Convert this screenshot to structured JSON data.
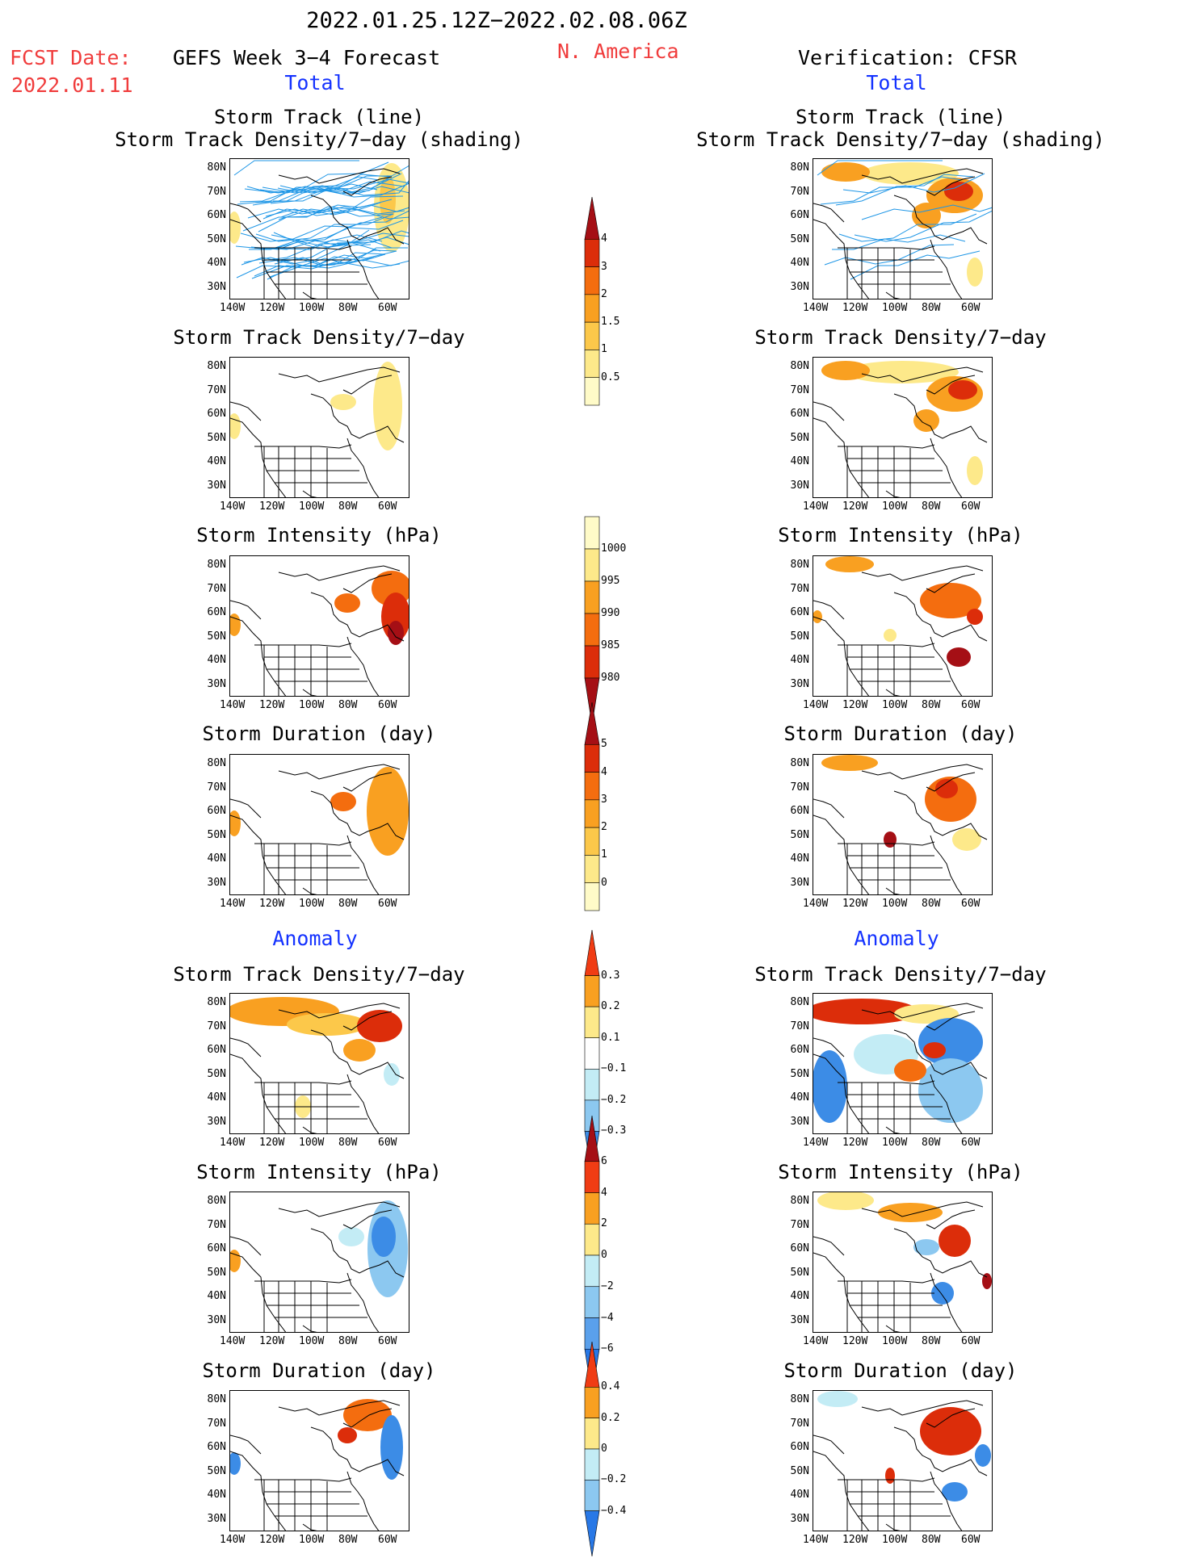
{
  "header": {
    "period": "2022.01.25.12Z−2022.02.08.06Z",
    "fcst_label": "FCST Date:",
    "fcst_date": "2022.01.11",
    "left_title": "GEFS Week 3−4 Forecast",
    "region": "N. America",
    "right_title": "Verification: CFSR",
    "total_left": "Total",
    "total_right": "Total",
    "anomaly_left": "Anomaly",
    "anomaly_right": "Anomaly"
  },
  "axis": {
    "lat_labels": [
      "80N",
      "70N",
      "60N",
      "50N",
      "40N",
      "30N"
    ],
    "lon_labels": [
      "140W",
      "120W",
      "100W",
      "80W",
      "60W"
    ]
  },
  "panels": {
    "track_title_1": "Storm Track (line)",
    "track_title_2": "Storm Track Density/7−day (shading)",
    "density": "Storm Track Density/7−day",
    "intensity": "Storm Intensity (hPa)",
    "duration": "Storm Duration (day)"
  },
  "colorbars": [
    {
      "id": "density-total",
      "labels": [
        "4",
        "3",
        "2",
        "1.5",
        "1",
        "0.5"
      ],
      "colors": [
        "#a50f15",
        "#dc2d0a",
        "#f46d0f",
        "#f9a021",
        "#fcc84a",
        "#fde98a",
        "#fffbc8"
      ]
    },
    {
      "id": "intensity-total",
      "labels": [
        "1000",
        "995",
        "990",
        "985",
        "980"
      ],
      "colors": [
        "#fffbc8",
        "#fde98a",
        "#f9a021",
        "#f46d0f",
        "#dc2d0a",
        "#a50f15"
      ]
    },
    {
      "id": "duration-total",
      "labels": [
        "5",
        "4",
        "3",
        "2",
        "1",
        "0"
      ],
      "colors": [
        "#a50f15",
        "#dc2d0a",
        "#f46d0f",
        "#f9a021",
        "#fcc84a",
        "#fde98a",
        "#fffbc8"
      ]
    },
    {
      "id": "density-anom",
      "labels": [
        "0.3",
        "0.2",
        "0.1",
        "−0.1",
        "−0.2",
        "−0.3"
      ],
      "colors": [
        "#f03c14",
        "#f9a021",
        "#fde98a",
        "#ffffff",
        "#c3ecf5",
        "#8cc8f0",
        "#3c8ce6"
      ]
    },
    {
      "id": "intensity-anom",
      "labels": [
        "6",
        "4",
        "2",
        "0",
        "−2",
        "−4",
        "−6"
      ],
      "colors": [
        "#a50f15",
        "#f03c14",
        "#f9a021",
        "#fde98a",
        "#c3ecf5",
        "#8cc8f0",
        "#5aa0eb",
        "#2878e6"
      ]
    },
    {
      "id": "duration-anom",
      "labels": [
        "0.4",
        "0.2",
        "0",
        "−0.2",
        "−0.4"
      ],
      "colors": [
        "#f03c14",
        "#f9a021",
        "#fde98a",
        "#c3ecf5",
        "#8cc8f0",
        "#2878e6"
      ]
    }
  ]
}
